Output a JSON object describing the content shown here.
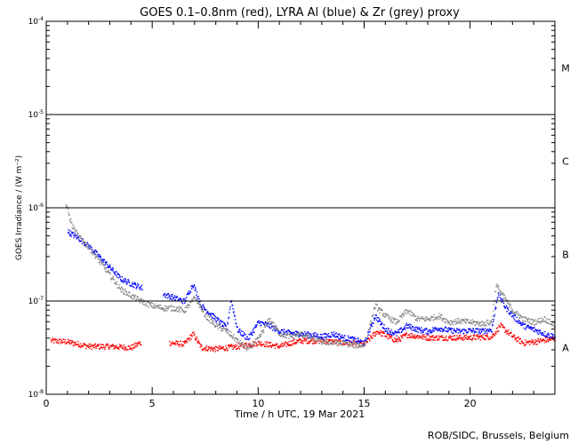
{
  "chart_data": {
    "type": "scatter",
    "title": "GOES 0.1–0.8nm (red), LYRA Al (blue) & Zr (grey) proxy",
    "xlabel": "Time / h UTC, 19 Mar 2021",
    "ylabel": "GOES Irradiance / (W m⁻²)",
    "yscale": "log",
    "xlim": [
      0,
      24
    ],
    "ylim": [
      1e-08,
      0.0001
    ],
    "x_ticks": [
      0,
      5,
      10,
      15,
      20
    ],
    "x_tick_labels": [
      "0",
      "5",
      "10",
      "15",
      "20"
    ],
    "y_ticks": [
      {
        "value": 0.0001,
        "base": "10",
        "exp": "-4"
      },
      {
        "value": 1e-05,
        "base": "10",
        "exp": "-5"
      },
      {
        "value": 1e-06,
        "base": "10",
        "exp": "-6"
      },
      {
        "value": 1e-07,
        "base": "10",
        "exp": "-7"
      },
      {
        "value": 1e-08,
        "base": "10",
        "exp": "-8"
      }
    ],
    "flare_class_lines": [
      1e-05,
      1e-06,
      1e-07
    ],
    "flare_classes": [
      {
        "label": "M",
        "value": 3.16e-05
      },
      {
        "label": "C",
        "value": 3.16e-06
      },
      {
        "label": "B",
        "value": 3.16e-07
      },
      {
        "label": "A",
        "value": 3.16e-08
      }
    ],
    "series": [
      {
        "name": "GOES 0.1-0.8nm",
        "color": "#ff0000",
        "gaps": [
          [
            4.45,
            5.8
          ]
        ],
        "points": [
          [
            0.2,
            3.8e-08
          ],
          [
            1.0,
            3.7e-08
          ],
          [
            2.0,
            3.3e-08
          ],
          [
            3.0,
            3.3e-08
          ],
          [
            4.0,
            3.2e-08
          ],
          [
            4.4,
            3.6e-08
          ],
          [
            5.8,
            3.6e-08
          ],
          [
            6.5,
            3.5e-08
          ],
          [
            6.9,
            4.5e-08
          ],
          [
            7.3,
            3.2e-08
          ],
          [
            8.0,
            3.1e-08
          ],
          [
            9.0,
            3.3e-08
          ],
          [
            10.0,
            3.6e-08
          ],
          [
            11.0,
            3.3e-08
          ],
          [
            11.5,
            3.6e-08
          ],
          [
            12.0,
            3.8e-08
          ],
          [
            13.0,
            3.8e-08
          ],
          [
            14.0,
            3.6e-08
          ],
          [
            15.0,
            3.5e-08
          ],
          [
            15.6,
            4.8e-08
          ],
          [
            16.5,
            3.8e-08
          ],
          [
            17.0,
            4.4e-08
          ],
          [
            18.0,
            4.1e-08
          ],
          [
            19.0,
            4.1e-08
          ],
          [
            20.0,
            4.1e-08
          ],
          [
            21.0,
            4.2e-08
          ],
          [
            21.4,
            5.5e-08
          ],
          [
            22.0,
            4.2e-08
          ],
          [
            22.5,
            3.6e-08
          ],
          [
            23.0,
            3.7e-08
          ],
          [
            24.0,
            4e-08
          ]
        ]
      },
      {
        "name": "LYRA Al proxy",
        "color": "#0000ff",
        "gaps": [
          [
            4.5,
            5.5
          ]
        ],
        "points": [
          [
            1.0,
            5.6e-07
          ],
          [
            1.5,
            4.8e-07
          ],
          [
            2.0,
            3.9e-07
          ],
          [
            2.5,
            3e-07
          ],
          [
            3.0,
            2.3e-07
          ],
          [
            3.5,
            1.75e-07
          ],
          [
            4.0,
            1.55e-07
          ],
          [
            4.5,
            1.4e-07
          ],
          [
            5.5,
            1.2e-07
          ],
          [
            6.0,
            1.1e-07
          ],
          [
            6.5,
            1e-07
          ],
          [
            6.9,
            1.55e-07
          ],
          [
            7.3,
            9e-08
          ],
          [
            8.0,
            6.5e-08
          ],
          [
            8.5,
            5.2e-08
          ],
          [
            8.7,
            1.05e-07
          ],
          [
            9.0,
            5e-08
          ],
          [
            9.5,
            4e-08
          ],
          [
            10.0,
            6e-08
          ],
          [
            10.5,
            5.5e-08
          ],
          [
            11.0,
            4.8e-08
          ],
          [
            11.5,
            4.6e-08
          ],
          [
            12.0,
            4.5e-08
          ],
          [
            12.5,
            4.4e-08
          ],
          [
            13.0,
            4.2e-08
          ],
          [
            13.5,
            4.5e-08
          ],
          [
            14.0,
            4.1e-08
          ],
          [
            14.5,
            3.9e-08
          ],
          [
            15.0,
            3.6e-08
          ],
          [
            15.5,
            7e-08
          ],
          [
            16.0,
            5e-08
          ],
          [
            16.5,
            4.5e-08
          ],
          [
            17.0,
            5.5e-08
          ],
          [
            17.5,
            5e-08
          ],
          [
            18.0,
            4.8e-08
          ],
          [
            18.5,
            5.2e-08
          ],
          [
            19.0,
            4.9e-08
          ],
          [
            19.5,
            4.8e-08
          ],
          [
            20.0,
            4.9e-08
          ],
          [
            20.5,
            4.8e-08
          ],
          [
            21.0,
            5e-08
          ],
          [
            21.3,
            1.25e-07
          ],
          [
            21.6,
            9e-08
          ],
          [
            22.0,
            7e-08
          ],
          [
            22.5,
            5.5e-08
          ],
          [
            23.0,
            5e-08
          ],
          [
            23.5,
            4.5e-08
          ],
          [
            24.0,
            4.2e-08
          ]
        ]
      },
      {
        "name": "LYRA Zr proxy",
        "color": "#888888",
        "gaps": [],
        "points": [
          [
            0.9,
            1.1e-06
          ],
          [
            1.2,
            6.5e-07
          ],
          [
            1.5,
            5e-07
          ],
          [
            2.0,
            3.8e-07
          ],
          [
            2.5,
            2.7e-07
          ],
          [
            3.0,
            1.9e-07
          ],
          [
            3.5,
            1.35e-07
          ],
          [
            4.0,
            1.15e-07
          ],
          [
            4.5,
            1e-07
          ],
          [
            5.0,
            9e-08
          ],
          [
            5.5,
            8.5e-08
          ],
          [
            6.0,
            8.5e-08
          ],
          [
            6.5,
            8e-08
          ],
          [
            7.0,
            1.1e-07
          ],
          [
            7.5,
            7e-08
          ],
          [
            8.0,
            5.5e-08
          ],
          [
            8.5,
            4.8e-08
          ],
          [
            9.0,
            3.8e-08
          ],
          [
            9.5,
            3.1e-08
          ],
          [
            10.0,
            4e-08
          ],
          [
            10.5,
            6.5e-08
          ],
          [
            11.0,
            4.5e-08
          ],
          [
            11.5,
            4.2e-08
          ],
          [
            12.0,
            4.5e-08
          ],
          [
            12.5,
            4e-08
          ],
          [
            13.0,
            3.7e-08
          ],
          [
            13.5,
            3.6e-08
          ],
          [
            14.0,
            3.6e-08
          ],
          [
            14.5,
            3.4e-08
          ],
          [
            15.0,
            3.4e-08
          ],
          [
            15.5,
            9e-08
          ],
          [
            16.0,
            7e-08
          ],
          [
            16.5,
            6e-08
          ],
          [
            17.0,
            8e-08
          ],
          [
            17.5,
            6.5e-08
          ],
          [
            18.0,
            6.5e-08
          ],
          [
            18.5,
            7e-08
          ],
          [
            19.0,
            6e-08
          ],
          [
            19.5,
            6.2e-08
          ],
          [
            20.0,
            6e-08
          ],
          [
            20.5,
            5.8e-08
          ],
          [
            21.0,
            6e-08
          ],
          [
            21.2,
            1.5e-07
          ],
          [
            21.6,
            1.1e-07
          ],
          [
            22.0,
            8e-08
          ],
          [
            22.5,
            6.5e-08
          ],
          [
            23.0,
            6e-08
          ],
          [
            23.5,
            6.5e-08
          ],
          [
            24.0,
            5.5e-08
          ]
        ]
      }
    ],
    "credit": "ROB/SIDC, Brussels, Belgium"
  }
}
